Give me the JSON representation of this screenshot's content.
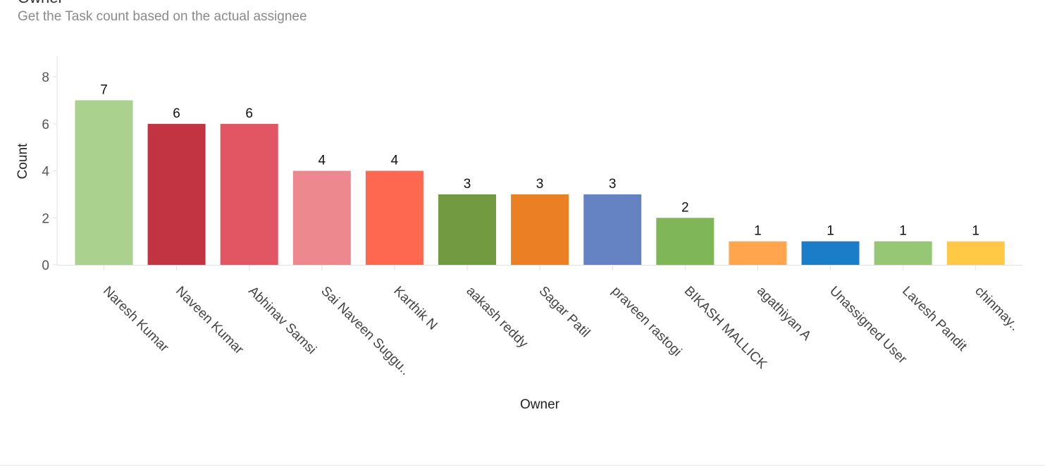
{
  "header": {
    "title": "Owner",
    "subtitle": "Get the Task count based on the actual assignee"
  },
  "chart_data": {
    "type": "bar",
    "title": "Owner",
    "subtitle": "Get the Task count based on the actual assignee",
    "xlabel": "Owner",
    "ylabel": "Count",
    "ylim": [
      0,
      8
    ],
    "yticks": [
      0,
      2,
      4,
      6,
      8
    ],
    "grid": false,
    "legend": "none",
    "categories": [
      "Naresh Kumar",
      "Naveen Kumar",
      "Abhinav Samsi",
      "Sai Naveen Suggu..",
      "Karthik N",
      "aakash reddy",
      "Sagar Patil",
      "praveen rastogi",
      "BIKASH MALLICK",
      "agathiyan A",
      "Unassigned User",
      "Lavesh Pandit",
      "chinmay.."
    ],
    "values": [
      7,
      6,
      6,
      4,
      4,
      3,
      3,
      3,
      2,
      1,
      1,
      1,
      1
    ],
    "colors": [
      "#abd18e",
      "#c33442",
      "#e25562",
      "#ee888f",
      "#fe6851",
      "#729a40",
      "#eb7f24",
      "#6583c2",
      "#7fb657",
      "#ffa54d",
      "#1b7cc7",
      "#96c774",
      "#ffc945"
    ]
  }
}
